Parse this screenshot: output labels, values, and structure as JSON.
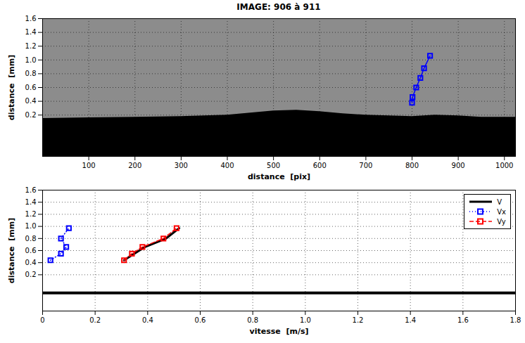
{
  "chart_data": [
    {
      "type": "line",
      "title": "IMAGE: 906 à 911",
      "x_label": "distance  [pix]",
      "y_label": "distance  [mm]",
      "xlim": [
        0,
        1024
      ],
      "xticks": [
        100,
        200,
        300,
        400,
        500,
        600,
        700,
        800,
        900,
        1000
      ],
      "ylim": [
        -0.4,
        1.6
      ],
      "yticks": [
        0.2,
        0.4,
        0.6,
        0.8,
        {
          "value": 1,
          "label": "1.0"
        },
        1.2,
        1.4,
        1.6
      ],
      "grid": true,
      "surface": {
        "color": "#000000",
        "x": [
          0,
          100,
          200,
          300,
          400,
          450,
          500,
          550,
          600,
          650,
          700,
          800,
          850,
          900,
          950,
          1024
        ],
        "values": [
          0.15,
          0.16,
          0.17,
          0.18,
          0.2,
          0.23,
          0.26,
          0.27,
          0.25,
          0.22,
          0.2,
          0.18,
          0.2,
          0.19,
          0.17,
          0.17
        ]
      },
      "series": [
        {
          "color": "#0000ff",
          "marker": "square",
          "line_style": "solid",
          "x": [
            800,
            801,
            809,
            818,
            826,
            839
          ],
          "values": [
            0.38,
            0.46,
            0.6,
            0.74,
            0.88,
            1.06
          ]
        }
      ]
    },
    {
      "type": "line",
      "x_label": "vitesse  [m/s]",
      "y_label": "distance  [mm]",
      "xlim": [
        0,
        1.8
      ],
      "xticks": [
        0,
        0.2,
        0.4,
        0.6,
        0.8,
        {
          "value": 1,
          "label": "1.0"
        },
        1.2,
        1.4,
        1.6,
        1.8
      ],
      "ylim": [
        -0.4,
        1.6
      ],
      "yticks": [
        0.2,
        0.4,
        0.6,
        0.8,
        {
          "value": 1,
          "label": "1.0"
        },
        1.2,
        1.4,
        1.6
      ],
      "grid": true,
      "legend": "top-right",
      "surface_level": {
        "value": -0.1,
        "color": "#000000"
      },
      "series": [
        {
          "name": "V",
          "color": "#000000",
          "marker": "none",
          "line_style": "solid",
          "x": [
            0.31,
            0.35,
            0.39,
            0.47,
            0.52
          ],
          "values": [
            0.44,
            0.55,
            0.66,
            0.8,
            0.97
          ]
        },
        {
          "name": "Vx",
          "color": "#0000ff",
          "marker": "square",
          "line_style": "dotted",
          "x": [
            0.03,
            0.07,
            0.09,
            0.07,
            0.1
          ],
          "values": [
            0.44,
            0.55,
            0.66,
            0.8,
            0.97
          ]
        },
        {
          "name": "Vy",
          "color": "#ff0000",
          "marker": "square",
          "line_style": "dashed",
          "x": [
            0.31,
            0.34,
            0.38,
            0.46,
            0.51
          ],
          "values": [
            0.44,
            0.55,
            0.66,
            0.8,
            0.97
          ]
        }
      ]
    }
  ]
}
